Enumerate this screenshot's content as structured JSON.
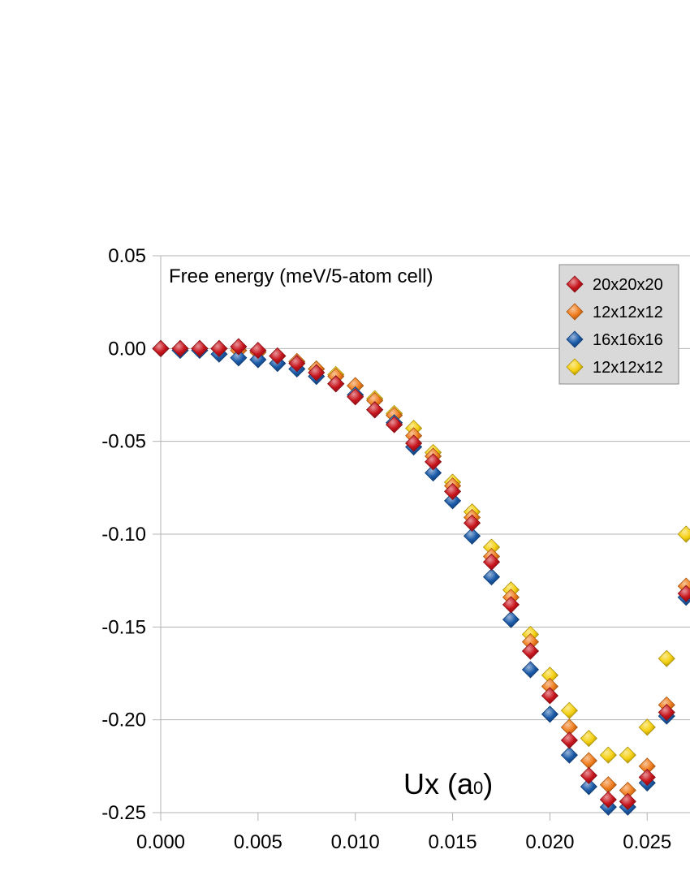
{
  "chart_data": {
    "type": "scatter",
    "title": "Free energy (meV/5-atom cell)",
    "xlabel": "Ux (a",
    "xlabel_sub": "0",
    "xlabel_close": ")",
    "xlim": [
      0,
      0.0272
    ],
    "ylim": [
      -0.25,
      0.05
    ],
    "xticks": [
      0,
      0.005,
      0.01,
      0.015,
      0.02,
      0.025
    ],
    "xtick_labels": [
      "0.000",
      "0.005",
      "0.010",
      "0.015",
      "0.020",
      "0.025"
    ],
    "yticks": [
      0.05,
      0,
      -0.05,
      -0.1,
      -0.15,
      -0.2,
      -0.25
    ],
    "ytick_labels": [
      "0.05",
      "0.00",
      "-0.05",
      "-0.10",
      "-0.15",
      "-0.20",
      "-0.25"
    ],
    "grid": "horizontal",
    "legend_position": "top-right",
    "marker": "diamond",
    "series": [
      {
        "name": "20x20x20",
        "color": "#c8141c",
        "x": [
          0,
          0.001,
          0.002,
          0.003,
          0.004,
          0.005,
          0.006,
          0.007,
          0.008,
          0.009,
          0.01,
          0.011,
          0.012,
          0.013,
          0.014,
          0.015,
          0.016,
          0.017,
          0.018,
          0.019,
          0.02,
          0.021,
          0.022,
          0.023,
          0.024,
          0.025,
          0.026,
          0.027
        ],
        "y": [
          0.0,
          0.0,
          0.0,
          0.0,
          0.001,
          -0.001,
          -0.004,
          -0.008,
          -0.013,
          -0.019,
          -0.026,
          -0.033,
          -0.041,
          -0.051,
          -0.061,
          -0.077,
          -0.094,
          -0.115,
          -0.138,
          -0.163,
          -0.187,
          -0.211,
          -0.23,
          -0.243,
          -0.244,
          -0.231,
          -0.196,
          -0.132
        ]
      },
      {
        "name": "12x12x12",
        "color": "#f07c1c",
        "x": [
          0,
          0.001,
          0.002,
          0.003,
          0.004,
          0.005,
          0.006,
          0.007,
          0.008,
          0.009,
          0.01,
          0.011,
          0.012,
          0.013,
          0.014,
          0.015,
          0.016,
          0.017,
          0.018,
          0.019,
          0.02,
          0.021,
          0.022,
          0.023,
          0.024,
          0.025,
          0.026,
          0.027
        ],
        "y": [
          0.0,
          0.0,
          0.0,
          0.0,
          -0.001,
          -0.002,
          -0.004,
          -0.007,
          -0.011,
          -0.015,
          -0.02,
          -0.028,
          -0.036,
          -0.047,
          -0.058,
          -0.074,
          -0.091,
          -0.112,
          -0.134,
          -0.158,
          -0.182,
          -0.204,
          -0.222,
          -0.235,
          -0.238,
          -0.225,
          -0.192,
          -0.128
        ]
      },
      {
        "name": "16x16x16",
        "color": "#1a5aa8",
        "x": [
          0,
          0.001,
          0.002,
          0.003,
          0.004,
          0.005,
          0.006,
          0.007,
          0.008,
          0.009,
          0.01,
          0.011,
          0.012,
          0.013,
          0.014,
          0.015,
          0.016,
          0.017,
          0.018,
          0.019,
          0.02,
          0.021,
          0.022,
          0.023,
          0.024,
          0.025,
          0.026,
          0.027
        ],
        "y": [
          0.0,
          -0.001,
          -0.001,
          -0.003,
          -0.005,
          -0.006,
          -0.008,
          -0.011,
          -0.015,
          -0.019,
          -0.025,
          -0.033,
          -0.04,
          -0.053,
          -0.067,
          -0.082,
          -0.101,
          -0.123,
          -0.146,
          -0.173,
          -0.197,
          -0.219,
          -0.236,
          -0.247,
          -0.247,
          -0.234,
          -0.198,
          -0.134
        ]
      },
      {
        "name": "12x12x12",
        "color": "#f5d010",
        "x": [
          0.008,
          0.009,
          0.01,
          0.011,
          0.012,
          0.013,
          0.014,
          0.015,
          0.016,
          0.017,
          0.018,
          0.019,
          0.02,
          0.021,
          0.022,
          0.023,
          0.024,
          0.025,
          0.026,
          0.027
        ],
        "y": [
          -0.011,
          -0.014,
          -0.02,
          -0.027,
          -0.035,
          -0.043,
          -0.056,
          -0.072,
          -0.088,
          -0.107,
          -0.13,
          -0.154,
          -0.176,
          -0.195,
          -0.21,
          -0.219,
          -0.219,
          -0.204,
          -0.167,
          -0.1
        ]
      }
    ]
  }
}
